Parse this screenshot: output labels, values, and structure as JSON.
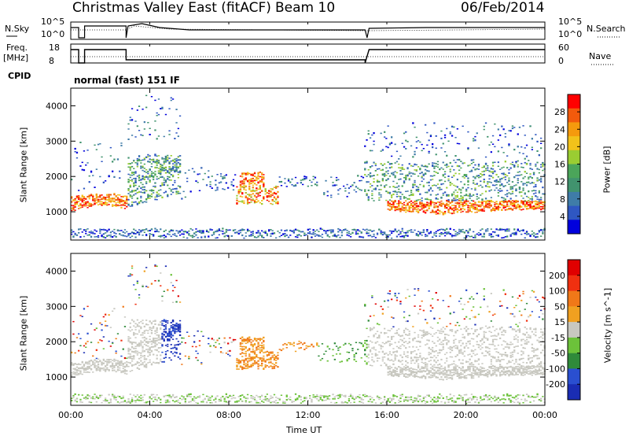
{
  "header": {
    "title": "Christmas Valley East (fitACF)",
    "beam": "Beam 10",
    "date": "06/Feb/2014"
  },
  "top_panels": {
    "nsky_label": "N.Sky",
    "nsky_ticks": [
      "10^5",
      "10^0"
    ],
    "nsearch_label": "N.Search",
    "nsearch_ticks": [
      "10^5",
      "10^0"
    ],
    "freq_label": "Freq.",
    "freq_unit": "[MHz]",
    "freq_ticks": [
      "18",
      "8"
    ],
    "nave_label": "Nave",
    "nave_ticks": [
      "60",
      "0"
    ],
    "cpid_label": "CPID",
    "cpid_value": "normal (fast) 151 IF"
  },
  "chart_data": [
    {
      "type": "heatmap",
      "ylabel": "Slant Range [km]",
      "xlabel": "Time UT",
      "x_ticks": [
        "00:00",
        "04:00",
        "08:00",
        "12:00",
        "16:00",
        "20:00",
        "00:00"
      ],
      "y_ticks": [
        1000,
        2000,
        3000,
        4000
      ],
      "ylim": [
        200,
        4500
      ],
      "colorbar": {
        "label": "Power [dB]",
        "ticks": [
          "28",
          "24",
          "20",
          "16",
          "12",
          "8",
          "4"
        ],
        "colors": [
          "#0000dd",
          "#2f57c2",
          "#3f7ca8",
          "#41936e",
          "#4ba55a",
          "#9acd32",
          "#f2c21a",
          "#f59a0d",
          "#f25a0c",
          "#ff0000"
        ]
      }
    },
    {
      "type": "heatmap",
      "ylabel": "Slant Range [km]",
      "xlabel": "Time UT",
      "x_ticks": [
        "00:00",
        "04:00",
        "08:00",
        "12:00",
        "16:00",
        "20:00",
        "00:00"
      ],
      "y_ticks": [
        1000,
        2000,
        3000,
        4000
      ],
      "ylim": [
        200,
        4500
      ],
      "colorbar": {
        "label": "Velocity [m s^-1]",
        "ticks": [
          "200",
          "100",
          "50",
          "15",
          "-15",
          "-50",
          "-100",
          "-200"
        ],
        "colors": [
          "#1a2db4",
          "#2a4fd0",
          "#2f8a3a",
          "#6cc23a",
          "#c8c8c0",
          "#f0a020",
          "#f07818",
          "#f03010",
          "#e00000"
        ]
      }
    }
  ],
  "footer": {
    "xlabel": "Time UT"
  }
}
